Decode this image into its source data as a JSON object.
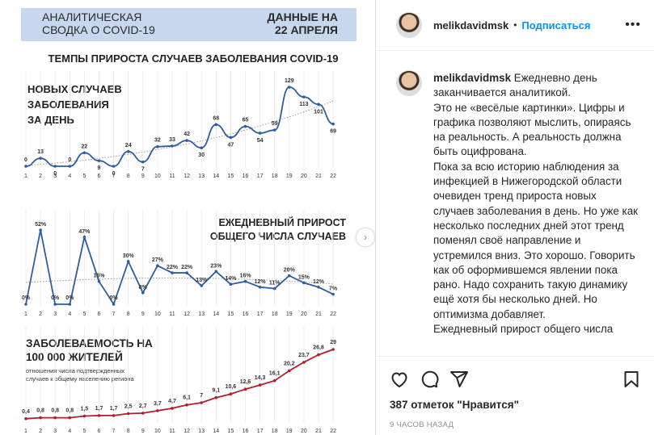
{
  "infographic": {
    "header_title": [
      "АНАЛИТИЧЕСКАЯ",
      "СВОДКА О COVID-19"
    ],
    "header_date": [
      "ДАННЫЕ НА",
      "22 АПРЕЛЯ"
    ],
    "main_title": "ТЕМПЫ ПРИРОСТА СЛУЧАЕВ ЗАБОЛЕВАНИЯ COVID-19",
    "accent_color": "#2d5d9f",
    "header_bg": "#c6d7ee"
  },
  "chart_data": [
    {
      "type": "line",
      "title": [
        "НОВЫХ СЛУЧАЕВ",
        "ЗАБОЛЕВАНИЯ",
        "ЗА ДЕНЬ"
      ],
      "x": [
        1,
        2,
        3,
        4,
        5,
        6,
        7,
        8,
        9,
        10,
        11,
        12,
        13,
        14,
        15,
        16,
        17,
        18,
        19,
        20,
        21,
        22
      ],
      "labels": [
        "0",
        "13",
        "0",
        "0",
        "22",
        "9",
        "0",
        "24",
        "7",
        "32",
        "33",
        "42",
        "30",
        "68",
        "47",
        "65",
        "54",
        "59",
        "129",
        "113",
        "101",
        "69"
      ],
      "values": [
        0,
        13,
        0,
        0,
        22,
        9,
        0,
        24,
        7,
        32,
        33,
        42,
        30,
        68,
        47,
        65,
        54,
        59,
        129,
        113,
        101,
        69
      ],
      "trend": "dotted",
      "color": "#2d5d9f"
    },
    {
      "type": "line",
      "title": [
        "ЕЖЕДНЕВНЫЙ ПРИРОСТ",
        "ОБЩЕГО ЧИСЛА СЛУЧАЕВ"
      ],
      "x": [
        1,
        2,
        3,
        4,
        5,
        6,
        7,
        8,
        9,
        10,
        11,
        12,
        13,
        14,
        15,
        16,
        17,
        18,
        19,
        20,
        21,
        22
      ],
      "labels": [
        "0%",
        "52%",
        "0%",
        "0%",
        "47%",
        "16%",
        "0%",
        "30%",
        "8%",
        "27%",
        "22%",
        "22%",
        "13%",
        "23%",
        "14%",
        "16%",
        "12%",
        "11%",
        "20%",
        "15%",
        "12%",
        "7%"
      ],
      "values": [
        0,
        52,
        0,
        0,
        47,
        16,
        0,
        30,
        8,
        27,
        22,
        22,
        13,
        23,
        14,
        16,
        12,
        11,
        20,
        15,
        12,
        7
      ],
      "unit": "%",
      "trend": "dotted",
      "color": "#2d5d9f"
    },
    {
      "type": "line",
      "title": [
        "ЗАБОЛЕВАЕМОСТЬ НА",
        "100 000 ЖИТЕЛЕЙ"
      ],
      "subtitle": [
        "отношения числа подтвержденных",
        "случаев к общему населению региона"
      ],
      "x": [
        1,
        2,
        3,
        4,
        5,
        6,
        7,
        8,
        9,
        10,
        11,
        12,
        13,
        14,
        15,
        16,
        17,
        18,
        19,
        20,
        21,
        22
      ],
      "labels": [
        "0,4",
        "0,8",
        "0,8",
        "0,8",
        "1,5",
        "1,7",
        "1,7",
        "2,5",
        "2,7",
        "3,7",
        "4,7",
        "6,1",
        "7",
        "9,1",
        "10,6",
        "12,6",
        "14,3",
        "16,1",
        "20,2",
        "23,7",
        "26,8",
        "29"
      ],
      "values": [
        0.4,
        0.8,
        0.8,
        0.8,
        1.5,
        1.7,
        1.7,
        2.5,
        2.7,
        3.7,
        4.7,
        6.1,
        7,
        9.1,
        10.6,
        12.6,
        14.3,
        16.1,
        20.2,
        23.7,
        26.8,
        29
      ],
      "color": "#b01e2e"
    }
  ],
  "post": {
    "username": "melikdavidmsk",
    "separator": "•",
    "follow_label": "Подписаться",
    "more_label": "•••",
    "caption_username": "melikdavidmsk",
    "caption": "Ежедневно день заканчивается аналитикой.\nЭто не «весёлые картинки». Цифры и графика позволяют мыслить, опираясь на реальность. А реальность должна быть оцифрована.\nПока за всю историю наблюдения за инфекцией в Нижегородской области очевиден тренд прироста новых случаев заболевания в день. Но уже как несколько последних дней этот тренд поменял своё направление и устремился вниз. Это хорошо. Говорить как об оформившемся явлении пока рано. Надо сохранить такую динамику ещё хотя бы несколько дней. Но оптимизма добавляет.\nЕжедневный прирост общего числа",
    "likes": "387 отметок \"Нравится\"",
    "timestamp": "9 часов назад",
    "icons": [
      "heart-icon",
      "comment-icon",
      "share-icon",
      "bookmark-icon"
    ]
  }
}
